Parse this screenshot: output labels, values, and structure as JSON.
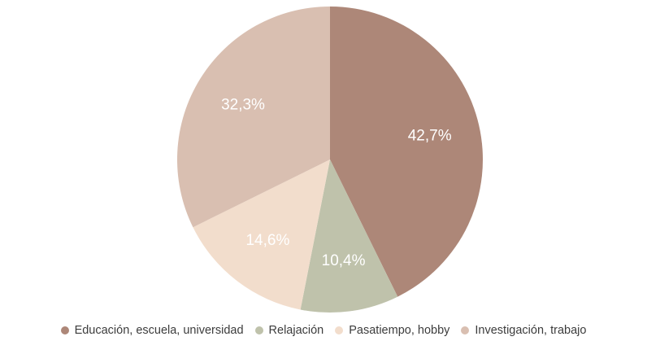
{
  "chart_data": {
    "type": "pie",
    "categories": [
      "Educación, escuela, universidad",
      "Relajación",
      "Pasatiempo, hobby",
      "Investigación, trabajo"
    ],
    "values": [
      42.7,
      10.4,
      14.6,
      32.3
    ],
    "value_labels": [
      "42,7%",
      "10,4%",
      "14,6%",
      "32,3%"
    ],
    "colors": [
      "#ad8778",
      "#bfc2ab",
      "#f2ddcc",
      "#d9bfb1"
    ],
    "legend": "bottom"
  }
}
